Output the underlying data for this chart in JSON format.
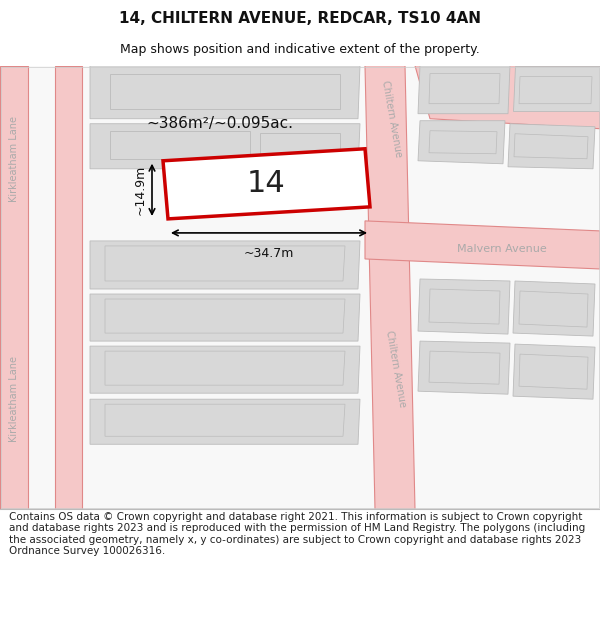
{
  "title_line1": "14, CHILTERN AVENUE, REDCAR, TS10 4AN",
  "title_line2": "Map shows position and indicative extent of the property.",
  "footer_text": "Contains OS data © Crown copyright and database right 2021. This information is subject to Crown copyright and database rights 2023 and is reproduced with the permission of HM Land Registry. The polygons (including the associated geometry, namely x, y co-ordinates) are subject to Crown copyright and database rights 2023 Ordnance Survey 100026316.",
  "property_number": "14",
  "area_label": "~386m²/~0.095ac.",
  "width_label": "~34.7m",
  "height_label": "~14.9m",
  "bg_color": "#ffffff",
  "road_color": "#f5c8c8",
  "road_line_color": "#e08888",
  "building_fill": "#d8d8d8",
  "building_edge": "#bbbbbb",
  "property_fill": "#ffffff",
  "property_edge": "#cc0000",
  "road_label_color": "#aaaaaa",
  "title_fontsize": 11,
  "subtitle_fontsize": 9,
  "footer_fontsize": 7.5
}
